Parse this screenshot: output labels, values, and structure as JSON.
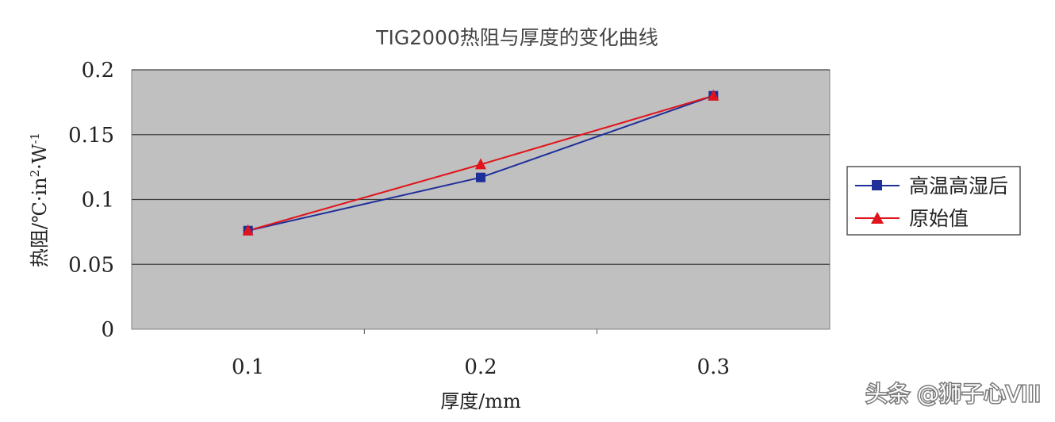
{
  "chart_data": {
    "type": "line",
    "title": "TIG2000热阻与厚度的变化曲线",
    "xlabel": "厚度/mm",
    "ylabel_parts": {
      "base": "热阻/℃·in",
      "sup1": "2",
      "mid": "·W",
      "sup2": "-1"
    },
    "categories": [
      "0.1",
      "0.2",
      "0.3"
    ],
    "x": [
      0.1,
      0.2,
      0.3
    ],
    "xlim": [
      0.05,
      0.35
    ],
    "ylim": [
      0,
      0.2
    ],
    "y_ticks": [
      0,
      0.05,
      0.1,
      0.15,
      0.2
    ],
    "y_tick_labels": [
      "0",
      "0.05",
      "0.1",
      "0.15",
      "0.2"
    ],
    "grid": true,
    "legend_position": "right",
    "plot_background": "#c0c0c0",
    "series": [
      {
        "name": "高温高湿后",
        "values": [
          0.076,
          0.117,
          0.18
        ],
        "color": "#1f2f9a",
        "marker": "square"
      },
      {
        "name": "原始值",
        "values": [
          0.076,
          0.127,
          0.18
        ],
        "color": "#e0141c",
        "marker": "triangle"
      }
    ]
  },
  "watermark": {
    "text": "头条 @狮子心VIII"
  }
}
